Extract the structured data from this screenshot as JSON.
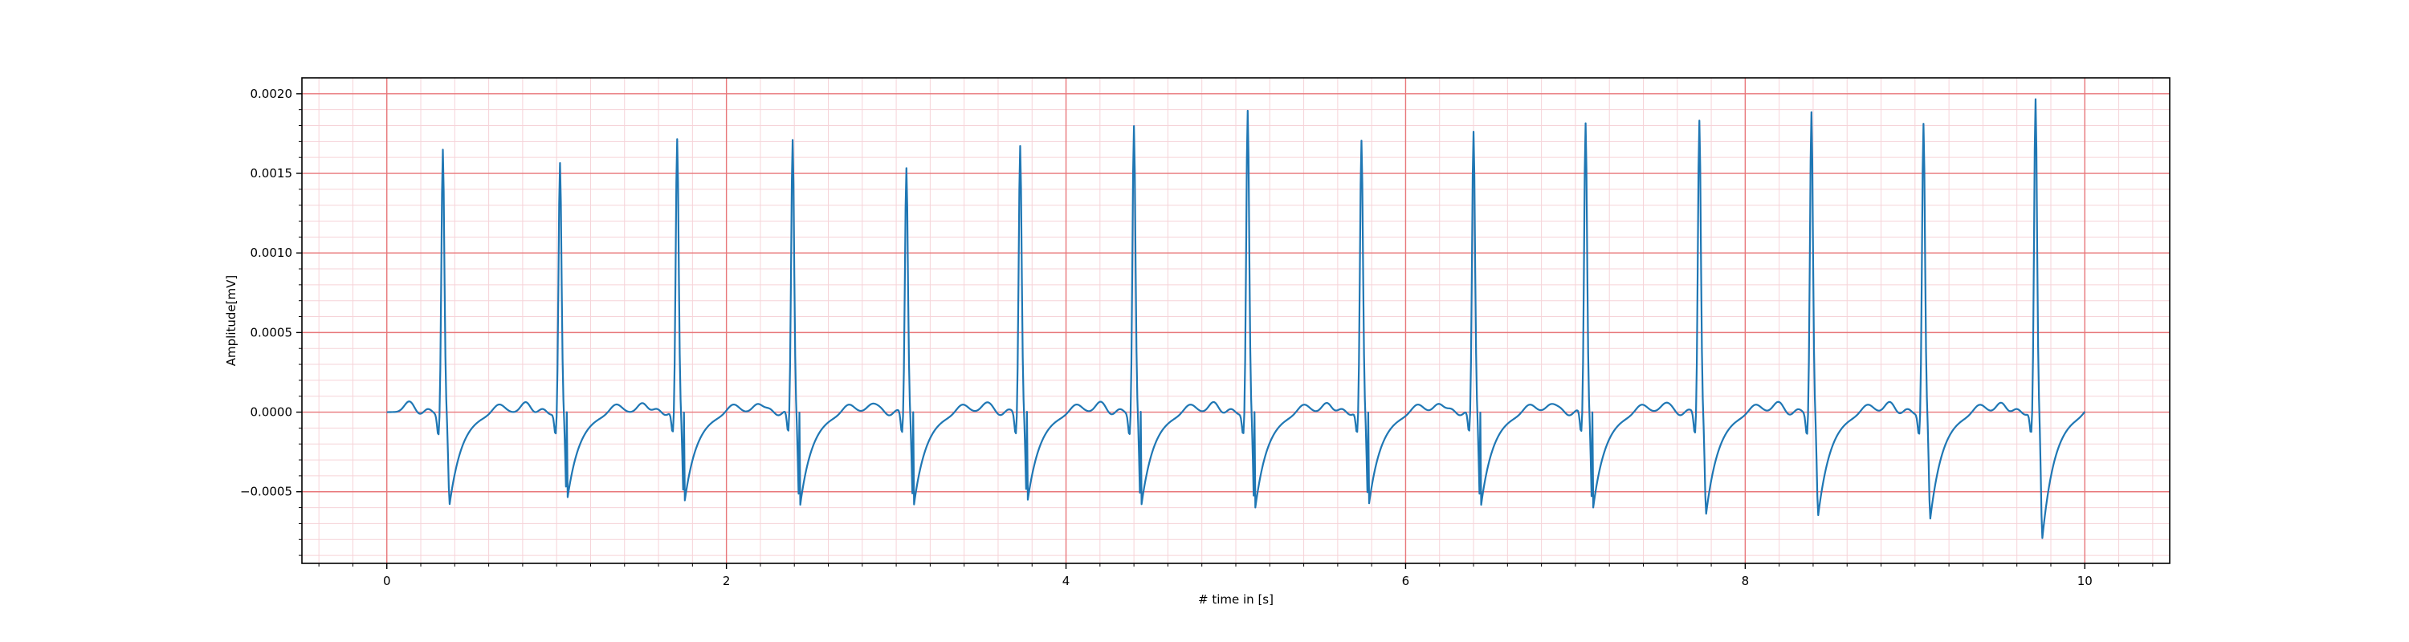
{
  "chart_data": {
    "type": "line",
    "title": "",
    "xlabel": "# time in [s]",
    "ylabel": "Amplitude[mV]",
    "xlim": [
      -0.5,
      10.5
    ],
    "ylim": [
      -0.00095,
      0.0021
    ],
    "x_ticks": [
      0,
      2,
      4,
      6,
      8,
      10
    ],
    "x_tick_labels": [
      "0",
      "2",
      "4",
      "6",
      "8",
      "10"
    ],
    "y_ticks": [
      -0.0005,
      0.0,
      0.0005,
      0.001,
      0.0015,
      0.002
    ],
    "y_tick_labels": [
      "−0.0005",
      "0.0000",
      "0.0005",
      "0.0010",
      "0.0015",
      "0.0020"
    ],
    "grid": {
      "major": true,
      "minor": true
    },
    "colors": {
      "line": "#1f77b4",
      "major_grid": "#e8777a",
      "minor_grid": "#f6d3d8",
      "axes": "#000000"
    },
    "sampling_rate_hz": 100,
    "beats": [
      {
        "t": 0.33,
        "peak": 0.00165,
        "trough": -0.00058
      },
      {
        "t": 1.02,
        "peak": 0.00156,
        "trough": -0.00057
      },
      {
        "t": 1.71,
        "peak": 0.00171,
        "trough": -0.00059
      },
      {
        "t": 2.39,
        "peak": 0.00171,
        "trough": -0.00062
      },
      {
        "t": 3.06,
        "peak": 0.00154,
        "trough": -0.00062
      },
      {
        "t": 3.73,
        "peak": 0.00168,
        "trough": -0.00059
      },
      {
        "t": 4.4,
        "peak": 0.0018,
        "trough": -0.00062
      },
      {
        "t": 5.07,
        "peak": 0.00189,
        "trough": -0.00064
      },
      {
        "t": 5.74,
        "peak": 0.0017,
        "trough": -0.00061
      },
      {
        "t": 6.4,
        "peak": 0.00176,
        "trough": -0.00062
      },
      {
        "t": 7.06,
        "peak": 0.00182,
        "trough": -0.00064
      },
      {
        "t": 7.73,
        "peak": 0.00184,
        "trough": -0.00064
      },
      {
        "t": 8.39,
        "peak": 0.00189,
        "trough": -0.00065
      },
      {
        "t": 9.05,
        "peak": 0.00181,
        "trough": -0.00067
      },
      {
        "t": 9.71,
        "peak": 0.00196,
        "trough": -0.00079
      }
    ]
  }
}
